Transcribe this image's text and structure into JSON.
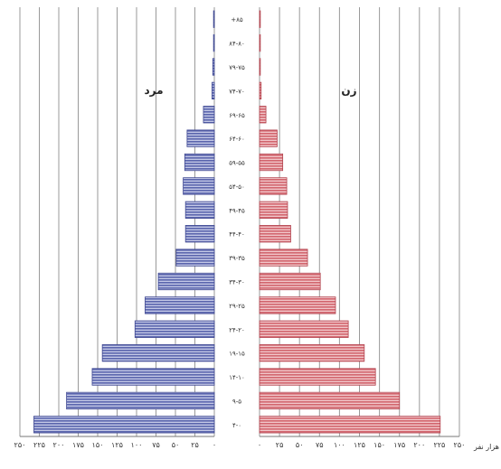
{
  "chart_data": {
    "type": "bar",
    "orientation": "horizontal",
    "title": "",
    "xlabel": "هزار نفر",
    "ylabel": "",
    "categories": [
      "۴-۰",
      "۹-۵",
      "۱۴-۱۰",
      "۱۹-۱۵",
      "۲۴-۲۰",
      "۲۹-۲۵",
      "۳۴-۳۰",
      "۳۹-۳۵",
      "۴۴-۴۰",
      "۴۹-۴۵",
      "۵۴-۵۰",
      "۵۹-۵۵",
      "۶۴-۶۰",
      "۶۹-۶۵",
      "۷۴-۷۰",
      "۷۹-۷۵",
      "۸۴-۸۰",
      "+۸۵"
    ],
    "series": [
      {
        "name": "مرد",
        "side": "left",
        "color": "#5a65ad",
        "values": [
          232,
          190,
          157,
          144,
          102,
          89,
          72,
          49,
          37,
          37,
          40,
          38,
          35,
          14,
          3,
          2,
          1,
          1
        ]
      },
      {
        "name": "زن",
        "side": "right",
        "color": "#d2656e",
        "values": [
          226,
          175,
          145,
          131,
          111,
          95,
          76,
          60,
          39,
          35,
          34,
          29,
          22,
          8,
          2,
          1,
          1,
          1
        ]
      }
    ],
    "xticks": [
      "۲۵۰",
      "۲۲۵",
      "۲۰۰",
      "۱۷۵",
      "۱۵۰",
      "۱۲۵",
      "۱۰۰",
      "۷۵",
      "۵۰",
      "۲۵",
      "۰"
    ],
    "xlim": [
      0,
      250
    ],
    "grid": true,
    "legend": "series names shown inside plot, top"
  }
}
